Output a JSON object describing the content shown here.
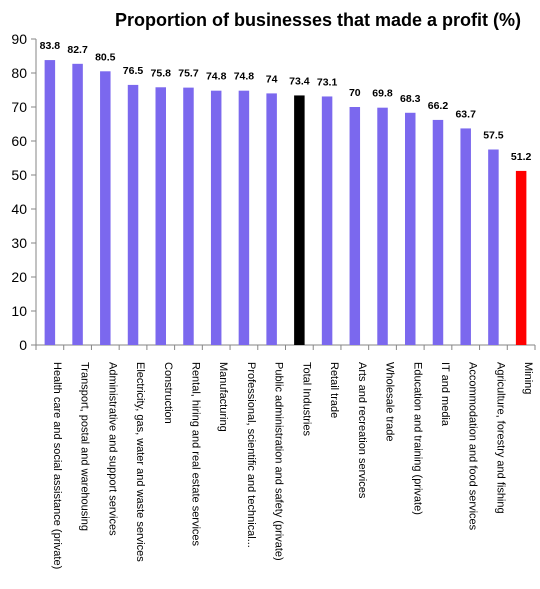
{
  "chart_data": {
    "type": "bar",
    "title": "Proportion of businesses that made a profit (%)",
    "xlabel": "",
    "ylabel": "",
    "ylim": [
      0,
      90
    ],
    "yticks": [
      0,
      10,
      20,
      30,
      40,
      50,
      60,
      70,
      80,
      90
    ],
    "grid": false,
    "legend": "none",
    "categories": [
      "Health care and social assistance (private)",
      "Transport, postal and warehousing",
      "Administrative and support services",
      "Electricity, gas, water and waste services",
      "Construction",
      "Rental, hiring and real estate services",
      "Manufacturing",
      "Professional, scientific and technical...",
      "Public administration and safety (private)",
      "Total Industries",
      "Retail trade",
      "Arts and recreation services",
      "Wholesale trade",
      "Education and training (private)",
      "IT and media",
      "Accommodation and food services",
      "Agriculture, forestry and fishing",
      "Mining"
    ],
    "values": [
      83.8,
      82.7,
      80.5,
      76.5,
      75.8,
      75.7,
      74.8,
      74.8,
      74,
      73.4,
      73.1,
      70,
      69.8,
      68.3,
      66.2,
      63.7,
      57.5,
      51.2
    ],
    "colors": {
      "default": "#7b68ee",
      "highlights": {
        "Total Industries": "#000000",
        "Mining": "#ff0000"
      }
    }
  }
}
